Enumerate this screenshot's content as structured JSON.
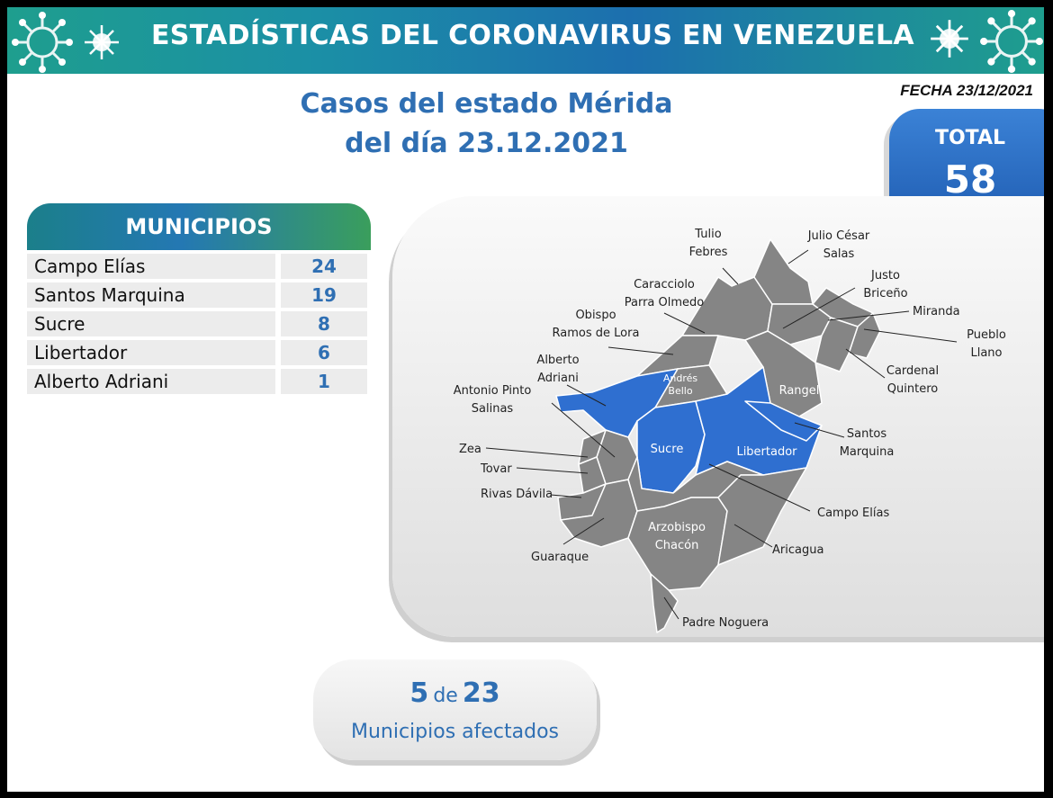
{
  "banner": {
    "title": "ESTADÍSTICAS DEL CORONAVIRUS EN VENEZUELA"
  },
  "date": "FECHA 23/12/2021",
  "heading": {
    "line1": "Casos del estado Mérida",
    "line2": "del día 23.12.2021"
  },
  "total": {
    "label": "TOTAL",
    "value": "58"
  },
  "municipios": {
    "header": "MUNICIPIOS",
    "rows": [
      {
        "name": "Campo Elías",
        "cases": "24"
      },
      {
        "name": "Santos Marquina",
        "cases": "19"
      },
      {
        "name": "Sucre",
        "cases": "8"
      },
      {
        "name": "Libertador",
        "cases": "6"
      },
      {
        "name": "Alberto Adriani",
        "cases": "1"
      }
    ]
  },
  "map": {
    "colors": {
      "affected": "#2f6fd0",
      "unaffected": "#858585",
      "border": "#ffffff"
    },
    "inner_labels": {
      "andres_bello": [
        "Andrés",
        "Bello"
      ],
      "sucre": "Sucre",
      "libertador": "Libertador",
      "rangel": "Rangel",
      "arzobispo_chacon": [
        "Arzobispo",
        "Chacón"
      ]
    },
    "outer_labels": {
      "tulio_febres": [
        "Tulio",
        "Febres"
      ],
      "julio_cesar_salas": [
        "Julio César",
        "Salas"
      ],
      "caracciolo_parra_olmedo": [
        "Caracciolo",
        "Parra Olmedo"
      ],
      "justo_briceno": [
        "Justo",
        "Briceño"
      ],
      "obispo_ramos_de_lora": [
        "Obispo",
        "Ramos de Lora"
      ],
      "miranda": "Miranda",
      "pueblo_llano": [
        "Pueblo",
        "Llano"
      ],
      "alberto_adriani": [
        "Alberto",
        "Adriani"
      ],
      "cardenal_quintero": [
        "Cardenal",
        "Quintero"
      ],
      "antonio_pinto_salinas": [
        "Antonio Pinto",
        "Salinas"
      ],
      "santos_marquina": [
        "Santos",
        "Marquina"
      ],
      "zea": "Zea",
      "tovar": "Tovar",
      "rivas_davila": "Rivas Dávila",
      "campo_elias": "Campo Elías",
      "guaraque": "Guaraque",
      "aricagua": "Aricagua",
      "padre_noguera": "Padre Noguera"
    }
  },
  "affected": {
    "count": "5",
    "connector": "de",
    "total": "23",
    "label": "Municipios afectados"
  }
}
